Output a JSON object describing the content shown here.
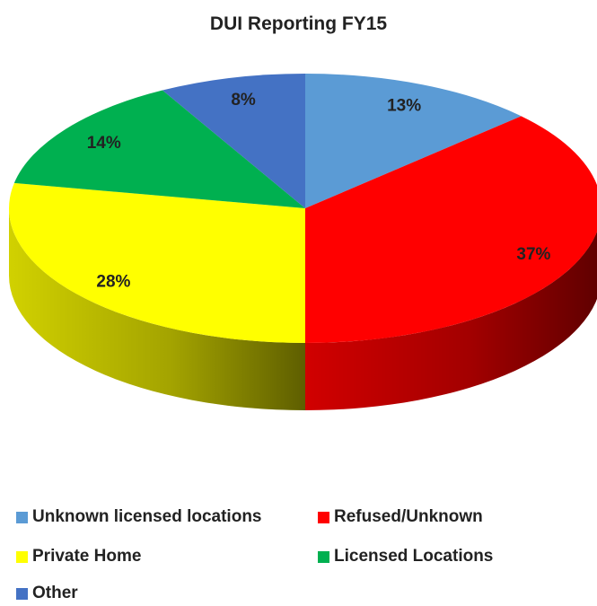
{
  "chart_data": {
    "type": "pie",
    "title": "DUI Reporting FY15",
    "categories": [
      "Unknown licensed locations",
      "Refused/Unknown",
      "Private Home",
      "Licensed Locations",
      "Other"
    ],
    "values": [
      13,
      37,
      28,
      14,
      8
    ],
    "value_labels": [
      "13%",
      "37%",
      "28%",
      "14%",
      "8%"
    ],
    "colors": [
      "#5B9BD5",
      "#FF0000",
      "#FFFF00",
      "#00B050",
      "#4472C4"
    ],
    "style": "3d",
    "legend_position": "bottom"
  }
}
